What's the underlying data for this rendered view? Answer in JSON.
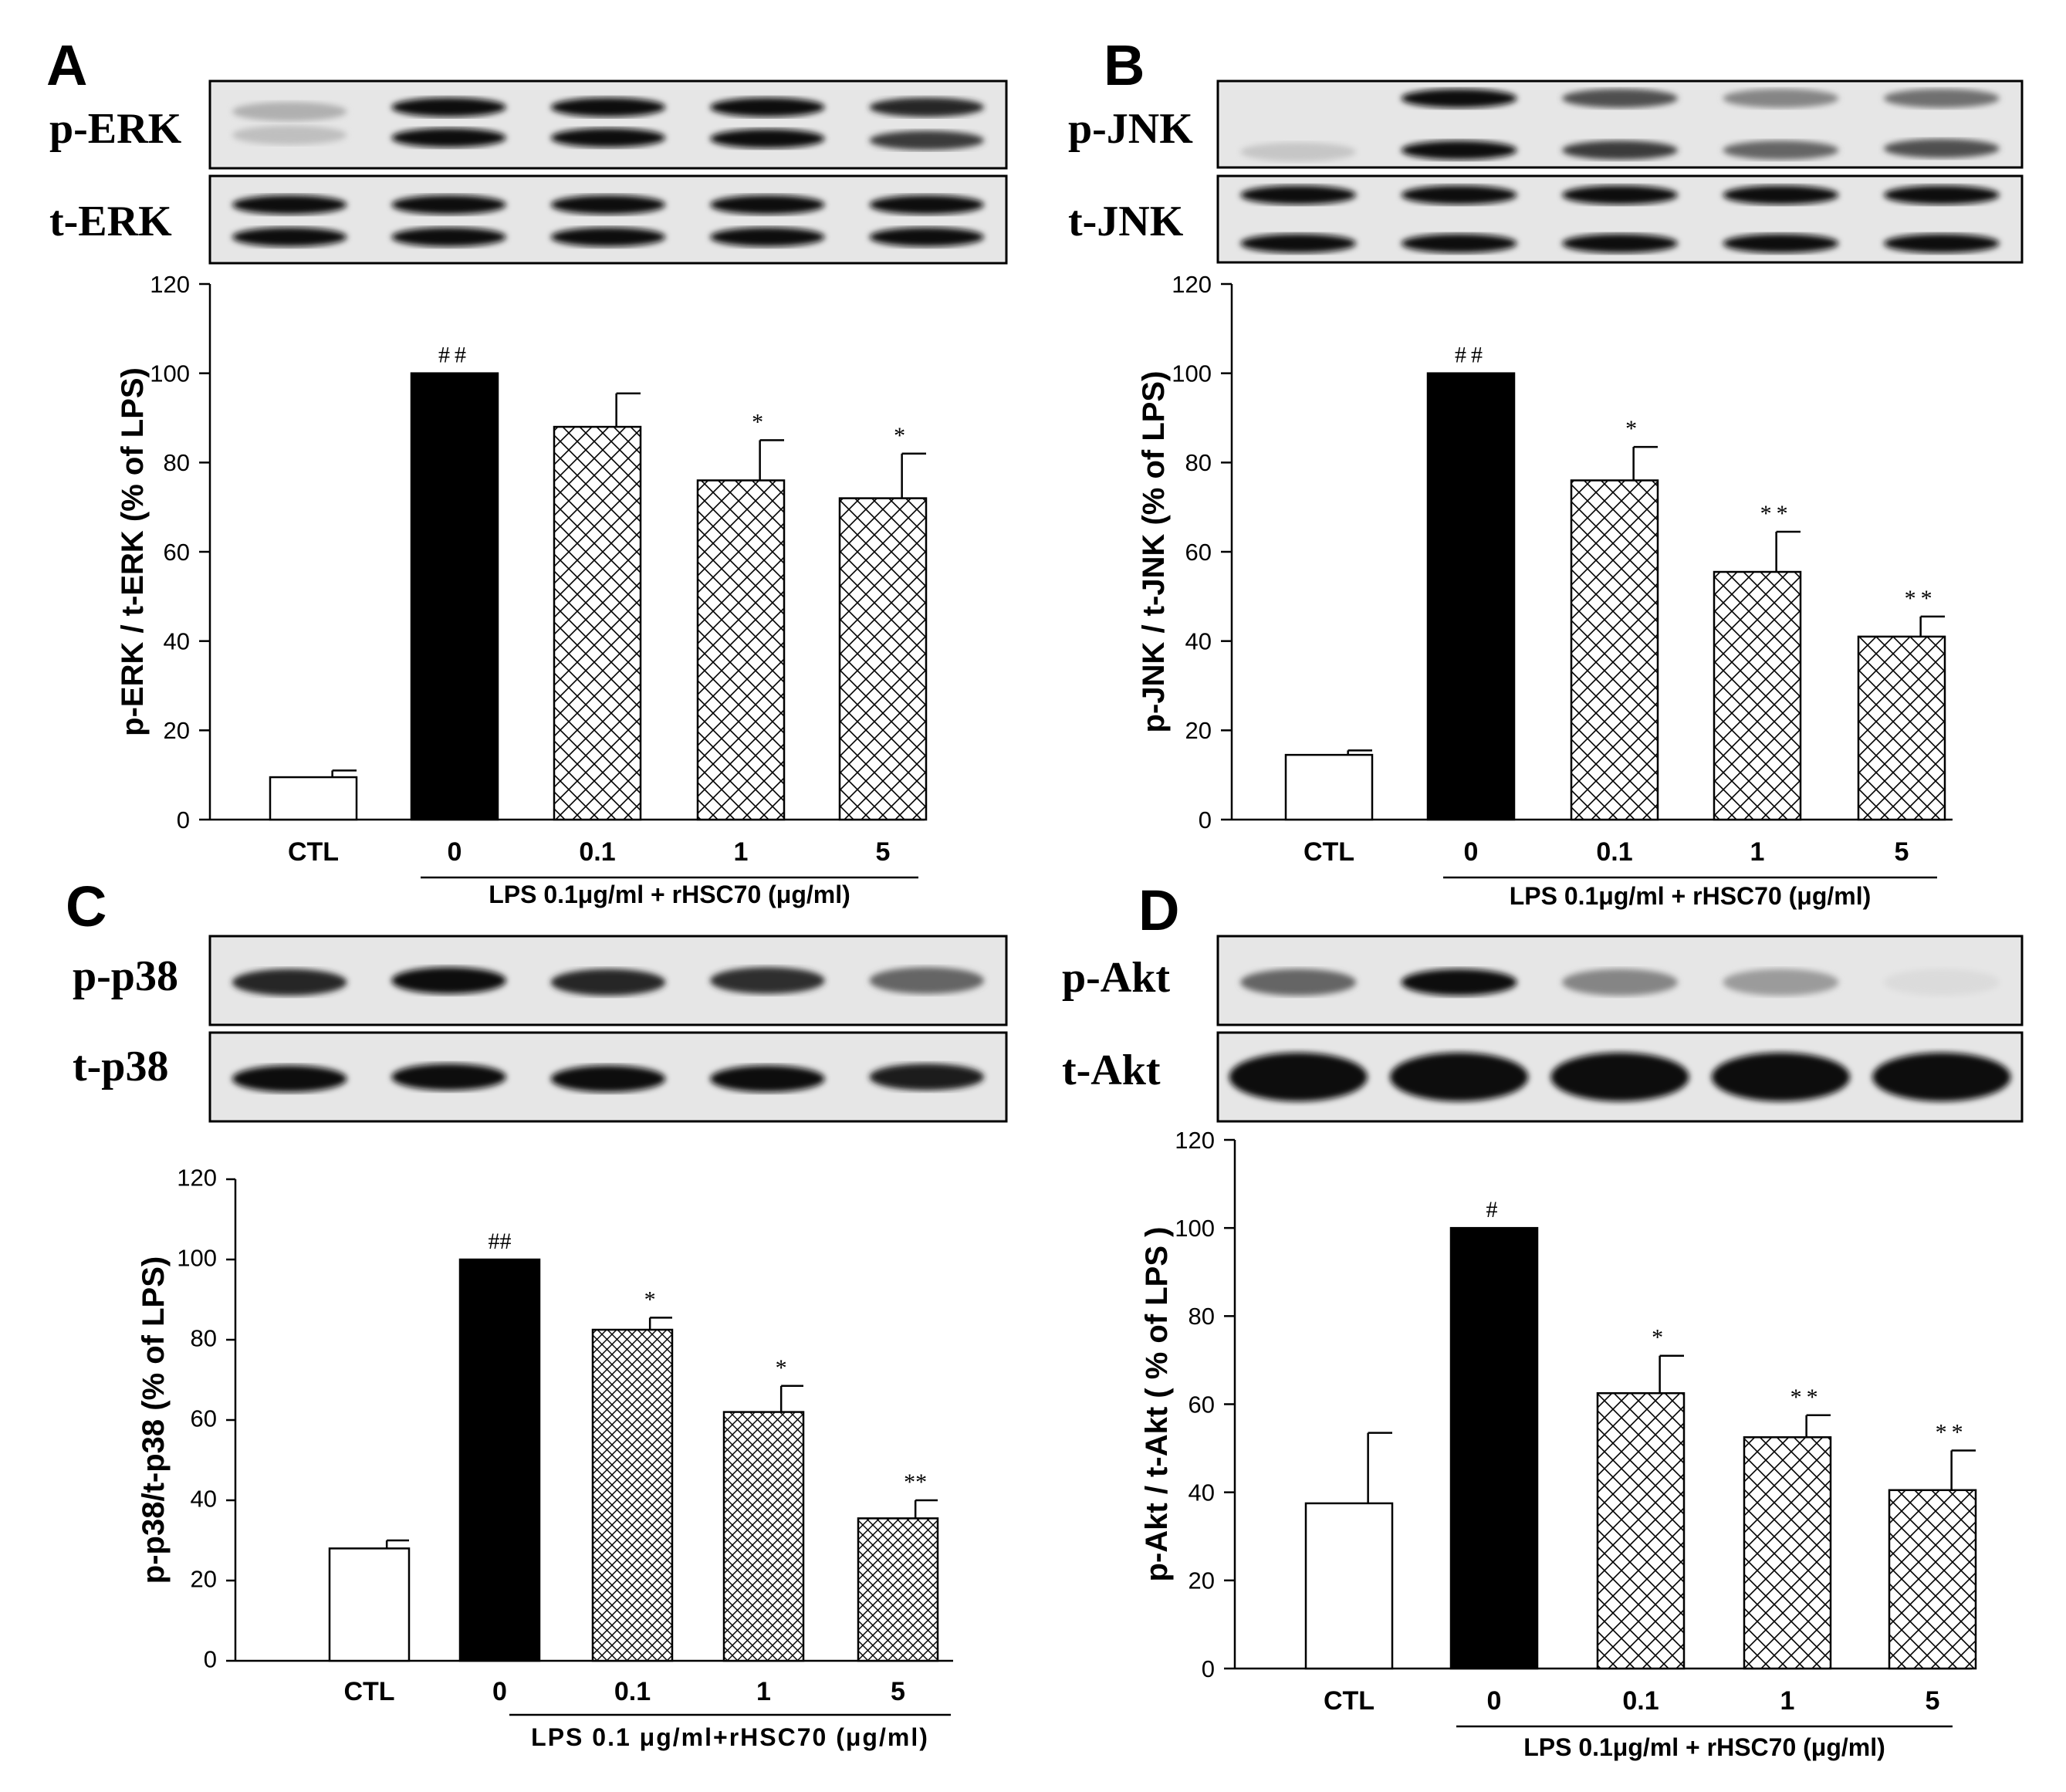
{
  "chart_data": [
    {
      "panel": "A",
      "type": "bar",
      "blot_labels": [
        "p-ERK",
        "t-ERK"
      ],
      "categories": [
        "CTL",
        "0",
        "0.1",
        "1",
        "5"
      ],
      "values": [
        9.5,
        100,
        88,
        76,
        72
      ],
      "errors": [
        1.5,
        0,
        7.5,
        9,
        10
      ],
      "annotations": [
        "",
        "##",
        "",
        "*",
        "*"
      ],
      "fills": [
        "white",
        "black",
        "crosshatch",
        "crosshatch",
        "crosshatch"
      ],
      "ylabel": "p-ERK / t-ERK (% of LPS)",
      "xgroup_label": "LPS 0.1μg/ml + rHSC70 (μg/ml)",
      "ylim": [
        0,
        120
      ],
      "yticks": [
        0,
        20,
        40,
        60,
        80,
        100,
        120
      ]
    },
    {
      "panel": "B",
      "type": "bar",
      "blot_labels": [
        "p-JNK",
        "t-JNK"
      ],
      "categories": [
        "CTL",
        "0",
        "0.1",
        "1",
        "5"
      ],
      "values": [
        14.5,
        100,
        76,
        55.5,
        41
      ],
      "errors": [
        1,
        0,
        7.5,
        9,
        4.5
      ],
      "annotations": [
        "",
        "##",
        "*",
        "**",
        "**"
      ],
      "fills": [
        "white",
        "black",
        "crosshatch",
        "crosshatch",
        "crosshatch"
      ],
      "ylabel": "p-JNK / t-JNK (% of LPS)",
      "xgroup_label": "LPS 0.1μg/ml + rHSC70 (μg/ml)",
      "ylim": [
        0,
        120
      ],
      "yticks": [
        0,
        20,
        40,
        60,
        80,
        100,
        120
      ]
    },
    {
      "panel": "C",
      "type": "bar",
      "blot_labels": [
        "p-p38",
        "t-p38"
      ],
      "categories": [
        "CTL",
        "0",
        "0.1",
        "1",
        "5"
      ],
      "values": [
        28,
        100,
        82.5,
        62,
        35.5
      ],
      "errors": [
        2,
        0,
        3,
        6.5,
        4.5
      ],
      "annotations": [
        "",
        "##",
        "*",
        "*",
        "**"
      ],
      "fills": [
        "white",
        "black",
        "crosshatch",
        "crosshatch",
        "crosshatch"
      ],
      "ylabel": "p-p38/t-p38 (% of LPS)",
      "xgroup_label": "LPS 0.1 μg/ml+rHSC70 (μg/ml)",
      "ylim": [
        0,
        120
      ],
      "yticks": [
        0,
        20,
        40,
        60,
        80,
        100,
        120
      ]
    },
    {
      "panel": "D",
      "type": "bar",
      "blot_labels": [
        "p-Akt",
        "t-Akt"
      ],
      "categories": [
        "CTL",
        "0",
        "0.1",
        "1",
        "5"
      ],
      "values": [
        37.5,
        100,
        62.5,
        52.5,
        40.5
      ],
      "errors": [
        16,
        0,
        8.5,
        5,
        9
      ],
      "annotations": [
        "",
        "#",
        "*",
        "**",
        "**"
      ],
      "fills": [
        "white",
        "black",
        "crosshatch",
        "crosshatch",
        "crosshatch"
      ],
      "ylabel": "p-Akt / t-Akt ( % of LPS )",
      "xgroup_label": "LPS 0.1μg/ml + rHSC70 (μg/ml)",
      "ylim": [
        0,
        120
      ],
      "yticks": [
        0,
        20,
        40,
        60,
        80,
        100,
        120
      ]
    }
  ]
}
